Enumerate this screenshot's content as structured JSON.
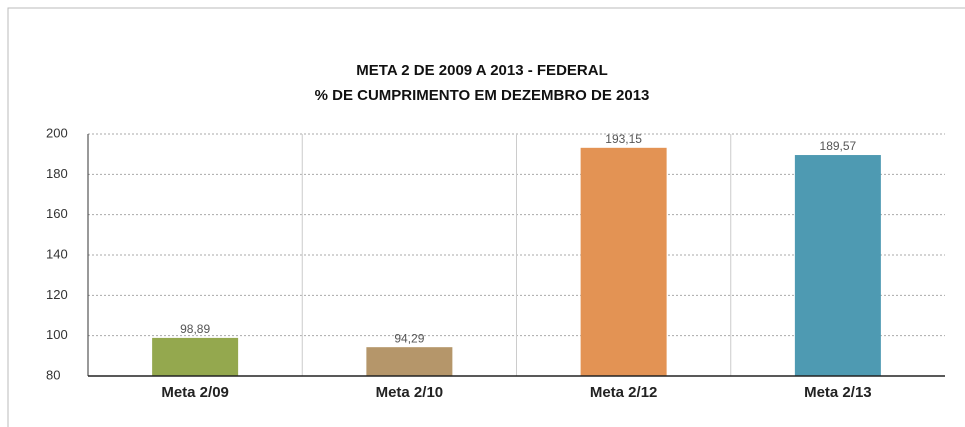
{
  "chart_data": {
    "type": "bar",
    "title": "META 2 DE 2009 A 2013 - FEDERAL",
    "subtitle": "% DE CUMPRIMENTO EM DEZEMBRO DE 2013",
    "categories": [
      "Meta 2/09",
      "Meta 2/10",
      "Meta 2/12",
      "Meta 2/13"
    ],
    "values": [
      98.89,
      94.29,
      193.15,
      189.57
    ],
    "value_labels": [
      "98,89",
      "94,29",
      "193,15",
      "189,57"
    ],
    "colors": [
      "#94a84e",
      "#b5966a",
      "#e39354",
      "#4e9ab2"
    ],
    "ylim": [
      80,
      200
    ],
    "yticks": [
      80,
      100,
      120,
      140,
      160,
      180,
      200
    ],
    "grid": true
  }
}
